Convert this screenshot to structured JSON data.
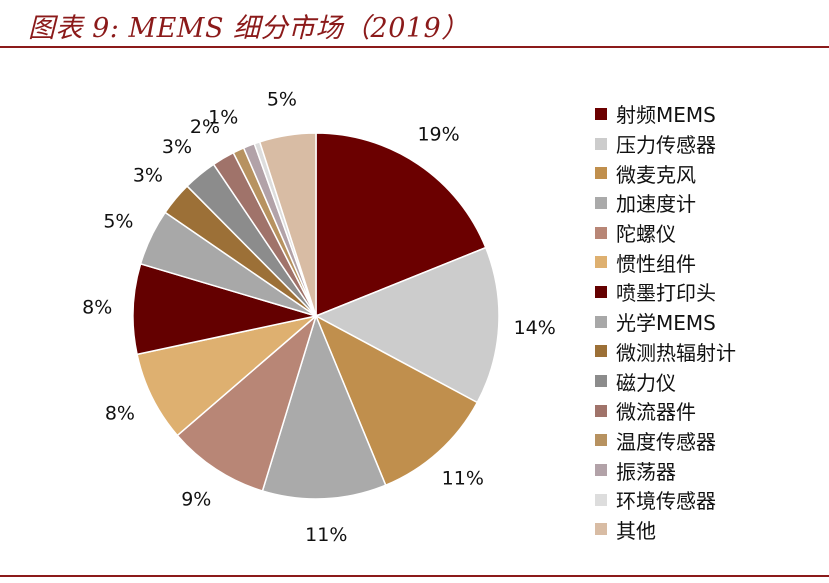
{
  "title": "图表 9: MEMS 细分市场（2019）",
  "chart_data": {
    "type": "pie",
    "categories": [
      "射频MEMS",
      "压力传感器",
      "微麦克风",
      "加速度计",
      "陀螺仪",
      "惯性组件",
      "喷墨打印头",
      "光学MEMS",
      "微测热辐射计",
      "磁力仪",
      "微流器件",
      "温度传感器",
      "振荡器",
      "环境传感器",
      "其他"
    ],
    "values": [
      19,
      14,
      11,
      11,
      9,
      8,
      8,
      5,
      3,
      3,
      2,
      1,
      1,
      0.5,
      5
    ],
    "data_labels": [
      "19%",
      "14%",
      "11%",
      "11%",
      "9%",
      "8%",
      "8%",
      "5%",
      "3%",
      "3%",
      "2%",
      "1%",
      "",
      "",
      "5%"
    ],
    "colors": [
      "#6b0000",
      "#cccccc",
      "#c08f4d",
      "#aaaaaa",
      "#b88676",
      "#deb070",
      "#640000",
      "#a8a8a8",
      "#9c7037",
      "#8c8c8c",
      "#a0736a",
      "#b79260",
      "#b2a2a8",
      "#dddddd",
      "#d8bca4"
    ],
    "legend_position": "right",
    "start_angle_deg": 0,
    "direction": "clockwise"
  }
}
